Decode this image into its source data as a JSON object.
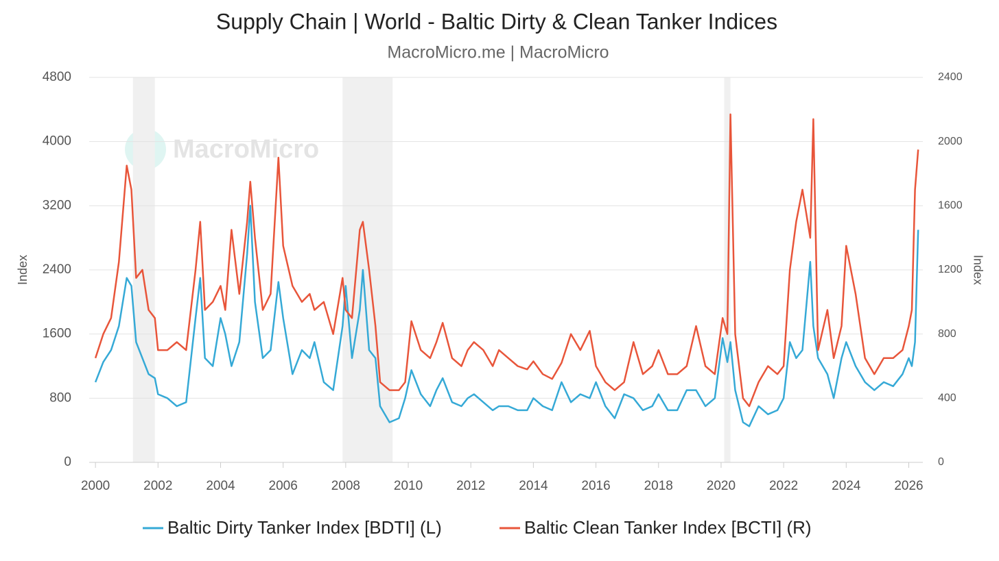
{
  "chart_data": {
    "type": "line",
    "title": "Supply Chain | World - Baltic Dirty & Clean Tanker Indices",
    "subtitle": "MacroMicro.me | MacroMicro",
    "watermark": "MacroMicro",
    "y_label": "Index",
    "y2_label": "Index",
    "x": [
      2000,
      2000.25,
      2000.5,
      2000.75,
      2001,
      2001.15,
      2001.3,
      2001.5,
      2001.7,
      2001.9,
      2002,
      2002.3,
      2002.6,
      2002.9,
      2003.2,
      2003.35,
      2003.5,
      2003.75,
      2004,
      2004.15,
      2004.35,
      2004.6,
      2004.85,
      2004.95,
      2005.1,
      2005.35,
      2005.6,
      2005.85,
      2006,
      2006.3,
      2006.6,
      2006.85,
      2007,
      2007.3,
      2007.6,
      2007.9,
      2008,
      2008.2,
      2008.45,
      2008.55,
      2008.75,
      2008.95,
      2009.1,
      2009.4,
      2009.7,
      2009.9,
      2010.1,
      2010.4,
      2010.7,
      2010.9,
      2011.1,
      2011.4,
      2011.7,
      2011.9,
      2012.1,
      2012.4,
      2012.7,
      2012.9,
      2013.2,
      2013.5,
      2013.8,
      2014,
      2014.3,
      2014.6,
      2014.9,
      2015.2,
      2015.5,
      2015.8,
      2016,
      2016.3,
      2016.6,
      2016.9,
      2017.2,
      2017.5,
      2017.8,
      2018,
      2018.3,
      2018.6,
      2018.9,
      2019.2,
      2019.5,
      2019.8,
      2020.05,
      2020.2,
      2020.3,
      2020.45,
      2020.7,
      2020.9,
      2021.2,
      2021.5,
      2021.8,
      2022,
      2022.2,
      2022.4,
      2022.6,
      2022.85,
      2022.95,
      2023.1,
      2023.4,
      2023.6,
      2023.85,
      2024,
      2024.3,
      2024.6,
      2024.9,
      2025.2,
      2025.5,
      2025.8,
      2026,
      2026.1,
      2026.2,
      2026.3
    ],
    "series": [
      {
        "name": "Baltic Dirty Tanker Index [BDTI] (L)",
        "color": "#35a9d6",
        "axis": "y",
        "values": [
          1000,
          1250,
          1400,
          1700,
          2300,
          2200,
          1500,
          1300,
          1100,
          1050,
          850,
          800,
          700,
          750,
          1800,
          2300,
          1300,
          1200,
          1800,
          1600,
          1200,
          1500,
          2600,
          3200,
          2000,
          1300,
          1400,
          2250,
          1800,
          1100,
          1400,
          1300,
          1500,
          1000,
          900,
          1700,
          2200,
          1300,
          1900,
          2400,
          1400,
          1300,
          700,
          500,
          550,
          800,
          1150,
          850,
          700,
          900,
          1050,
          750,
          700,
          800,
          850,
          750,
          650,
          700,
          700,
          650,
          650,
          800,
          700,
          650,
          1000,
          750,
          850,
          800,
          1000,
          700,
          550,
          850,
          800,
          650,
          700,
          850,
          650,
          650,
          900,
          900,
          700,
          800,
          1550,
          1250,
          1500,
          900,
          500,
          450,
          700,
          600,
          650,
          800,
          1500,
          1300,
          1400,
          2500,
          1700,
          1300,
          1100,
          800,
          1300,
          1500,
          1200,
          1000,
          900,
          1000,
          950,
          1100,
          1300,
          1200,
          1500,
          2900
        ]
      },
      {
        "name": "Baltic Clean Tanker Index [BCTI] (R)",
        "color": "#e8553a",
        "axis": "y2",
        "values": [
          650,
          800,
          900,
          1250,
          1850,
          1700,
          1150,
          1200,
          950,
          900,
          700,
          700,
          750,
          700,
          1200,
          1500,
          950,
          1000,
          1100,
          950,
          1450,
          1050,
          1500,
          1750,
          1400,
          950,
          1050,
          1900,
          1350,
          1100,
          1000,
          1050,
          950,
          1000,
          800,
          1150,
          950,
          900,
          1450,
          1500,
          1200,
          850,
          500,
          450,
          450,
          500,
          880,
          700,
          650,
          750,
          870,
          650,
          600,
          700,
          750,
          700,
          600,
          700,
          650,
          600,
          580,
          630,
          550,
          520,
          620,
          800,
          700,
          820,
          600,
          500,
          450,
          500,
          750,
          550,
          600,
          700,
          550,
          550,
          600,
          850,
          600,
          550,
          900,
          800,
          2170,
          800,
          400,
          350,
          500,
          600,
          550,
          600,
          1200,
          1500,
          1700,
          1400,
          2140,
          700,
          950,
          650,
          850,
          1350,
          1050,
          650,
          550,
          650,
          650,
          700,
          850,
          950,
          1700,
          1950
        ]
      }
    ],
    "shaded_periods": [
      [
        2001.2,
        2001.9
      ],
      [
        2007.9,
        2009.5
      ],
      [
        2020.1,
        2020.3
      ]
    ],
    "xlim": [
      1999.8,
      2026.45
    ],
    "xticks": [
      2000,
      2002,
      2004,
      2006,
      2008,
      2010,
      2012,
      2014,
      2016,
      2018,
      2020,
      2022,
      2024,
      2026
    ],
    "ylim": [
      0,
      4800
    ],
    "yticks": [
      0,
      800,
      1600,
      2400,
      3200,
      4000,
      4800
    ],
    "y2lim": [
      0,
      2400
    ],
    "y2ticks": [
      0,
      400,
      800,
      1200,
      1600,
      2000,
      2400
    ],
    "grid": true,
    "legend": "bottom"
  }
}
